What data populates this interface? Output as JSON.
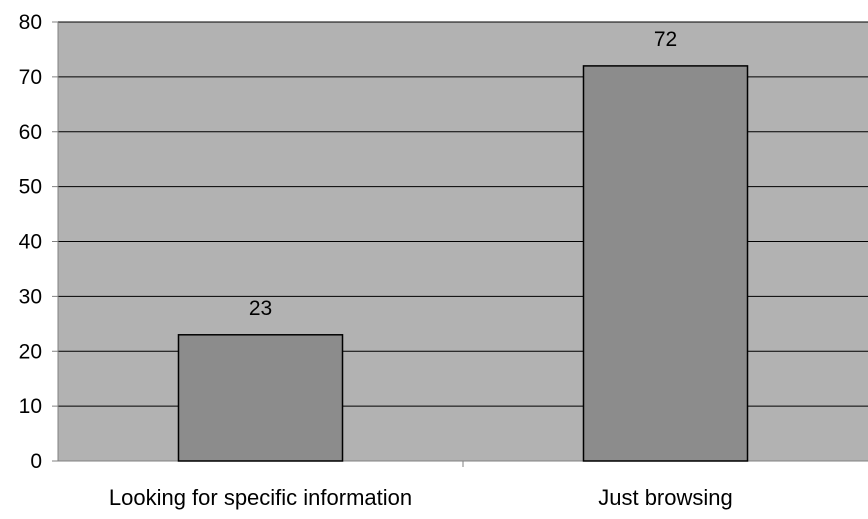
{
  "chart_data": {
    "type": "bar",
    "title": "",
    "xlabel": "",
    "ylabel": "",
    "categories": [
      "Looking for specific information",
      "Just browsing"
    ],
    "values": [
      23,
      72
    ],
    "data_labels": [
      "23",
      "72"
    ],
    "ylim": [
      0,
      80
    ],
    "yticks": [
      0,
      10,
      20,
      30,
      40,
      50,
      60,
      70,
      80
    ],
    "ytick_labels": [
      "0",
      "10",
      "20",
      "30",
      "40",
      "50",
      "60",
      "70",
      "80"
    ],
    "grid": true,
    "legend": "none",
    "colors": {
      "plot_background": "#b2b2b2",
      "bar_fill": "#8c8c8c",
      "bar_stroke": "#000000",
      "gridline": "#000000",
      "axis": "#808080"
    }
  }
}
